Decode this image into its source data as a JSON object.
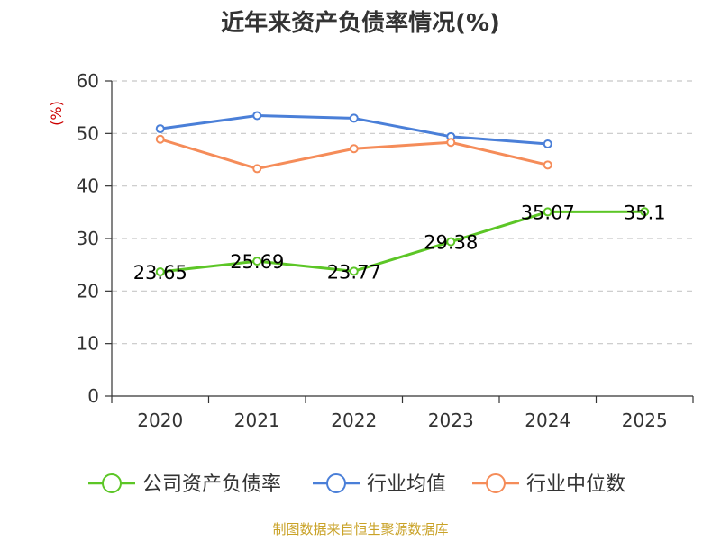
{
  "chart_data": {
    "type": "line",
    "title": "近年来资产负债率情况(%)",
    "unit_label": "(%)",
    "categories": [
      "2020",
      "2021",
      "2022",
      "2023",
      "2024",
      "2025"
    ],
    "ylim": [
      0,
      60
    ],
    "yticks": [
      0,
      10,
      20,
      30,
      40,
      50,
      60
    ],
    "grid": true,
    "legend_position": "bottom",
    "series": [
      {
        "name": "公司资产负债率",
        "color": "#5cc626",
        "values": [
          23.65,
          25.69,
          23.77,
          29.38,
          35.07,
          35.1
        ],
        "data_labels": [
          "23.65",
          "25.69",
          "23.77",
          "29.38",
          "35.07",
          "35.1"
        ]
      },
      {
        "name": "行业均值",
        "color": "#4a7fd8",
        "values": [
          50.9,
          53.4,
          52.9,
          49.4,
          48.0,
          null
        ]
      },
      {
        "name": "行业中位数",
        "color": "#f58c59",
        "values": [
          48.9,
          43.3,
          47.1,
          48.3,
          44.0,
          null
        ]
      }
    ],
    "source": "制图数据来自恒生聚源数据库"
  }
}
